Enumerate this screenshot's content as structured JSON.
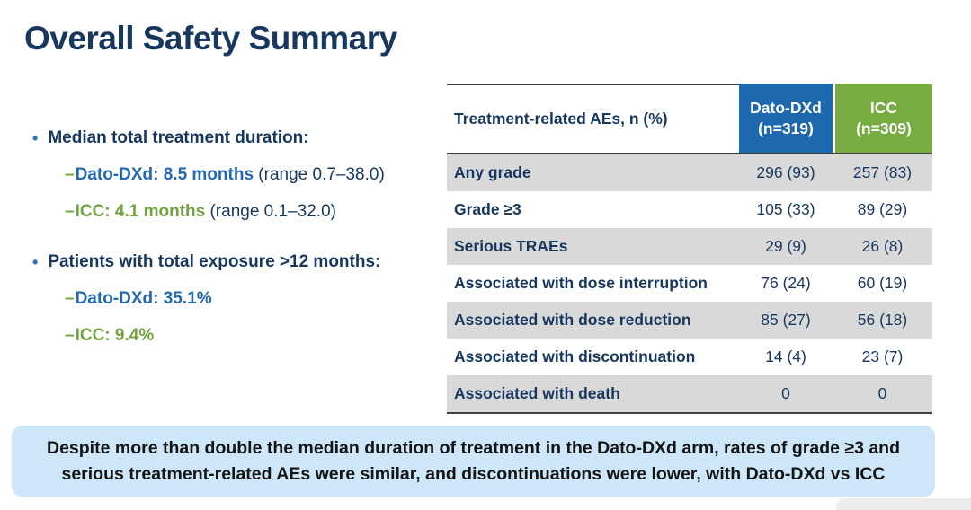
{
  "title": "Overall Safety Summary",
  "colors": {
    "navy": "#17375E",
    "blue": "#2268B2",
    "green": "#71A33E",
    "blue_bg": "#1E68B0",
    "green_bg": "#76AC42",
    "row_gray": "#D9D9D9",
    "banner_bg": "#CDE7F8",
    "banner_text": "#141414",
    "border_dark": "#404040",
    "bullet_blue": "#2E74B5"
  },
  "glyphs": {
    "bullet": "•",
    "dash": "–"
  },
  "bullets": [
    {
      "label": "Median total treatment duration:",
      "items": [
        {
          "value": "Dato-DXd: 8.5 months",
          "range": " (range 0.7–38.0)"
        },
        {
          "value": "ICC: 4.1 months",
          "range": " (range 0.1–32.0)"
        }
      ]
    },
    {
      "label": "Patients with total exposure >12 months:",
      "items": [
        {
          "value": "Dato-DXd: 35.1%",
          "range": ""
        },
        {
          "value": "ICC: 9.4%",
          "range": ""
        }
      ]
    }
  ],
  "table": {
    "header": {
      "label": "Treatment-related AEs, n (%)",
      "dato_line1": "Dato-DXd",
      "dato_line2": "(n=319)",
      "icc_line1": "ICC",
      "icc_line2": "(n=309)"
    },
    "rows": [
      {
        "label": "Any grade",
        "dato": "296 (93)",
        "icc": "257 (83)"
      },
      {
        "label": "Grade ≥3",
        "dato": "105 (33)",
        "icc": "89 (29)"
      },
      {
        "label": "Serious TRAEs",
        "dato": "29 (9)",
        "icc": "26 (8)"
      },
      {
        "label": "Associated with dose interruption",
        "dato": "76 (24)",
        "icc": "60 (19)"
      },
      {
        "label": "Associated with dose reduction",
        "dato": "85 (27)",
        "icc": "56 (18)"
      },
      {
        "label": "Associated with discontinuation",
        "dato": "14 (4)",
        "icc": "23 (7)"
      },
      {
        "label": "Associated with death",
        "dato": "0",
        "icc": "0"
      }
    ]
  },
  "banner": {
    "line1": "Despite more than double the median duration of treatment in the Dato-DXd arm, rates of grade ≥3 and",
    "line2": "serious treatment-related AEs were similar, and discontinuations were lower, with Dato-DXd vs ICC"
  }
}
